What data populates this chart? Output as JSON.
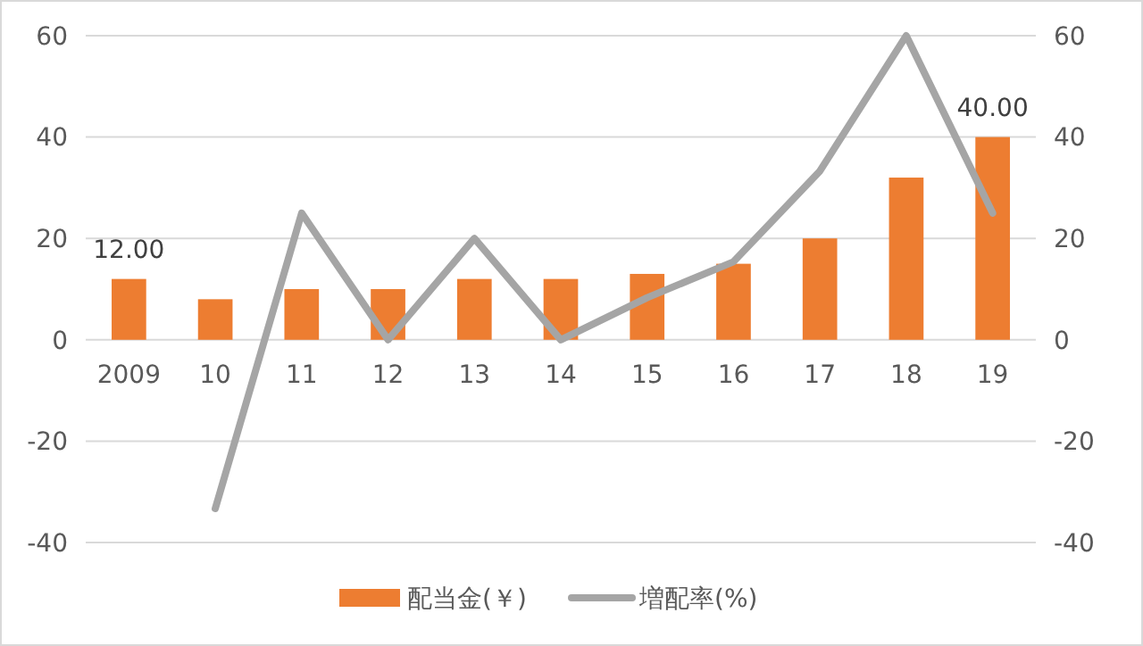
{
  "chart_data": {
    "type": "bar",
    "categories": [
      "2009",
      "10",
      "11",
      "12",
      "13",
      "14",
      "15",
      "16",
      "17",
      "18",
      "19"
    ],
    "series": [
      {
        "name": "配当金(￥)",
        "color": "#ed7d31",
        "values": [
          12,
          8,
          10,
          10,
          12,
          12,
          13,
          15,
          20,
          32,
          40
        ],
        "value_labels": [
          "12.00",
          null,
          null,
          null,
          null,
          null,
          null,
          null,
          null,
          null,
          "40.00"
        ]
      },
      {
        "name": "増配率(%)",
        "type": "line",
        "axis": "y2",
        "color": "#a5a5a5",
        "values": [
          null,
          -33.3,
          25,
          0,
          20,
          0,
          8.3,
          15.4,
          33.3,
          60,
          25
        ]
      }
    ],
    "ylim": [
      -40,
      60
    ],
    "yticks": [
      -40,
      -20,
      0,
      20,
      40,
      60
    ],
    "y2lim": [
      -40,
      60
    ],
    "y2ticks": [
      -40,
      -20,
      0,
      20,
      40,
      60
    ],
    "grid": "y",
    "legend": "bottom",
    "marker": "none"
  }
}
